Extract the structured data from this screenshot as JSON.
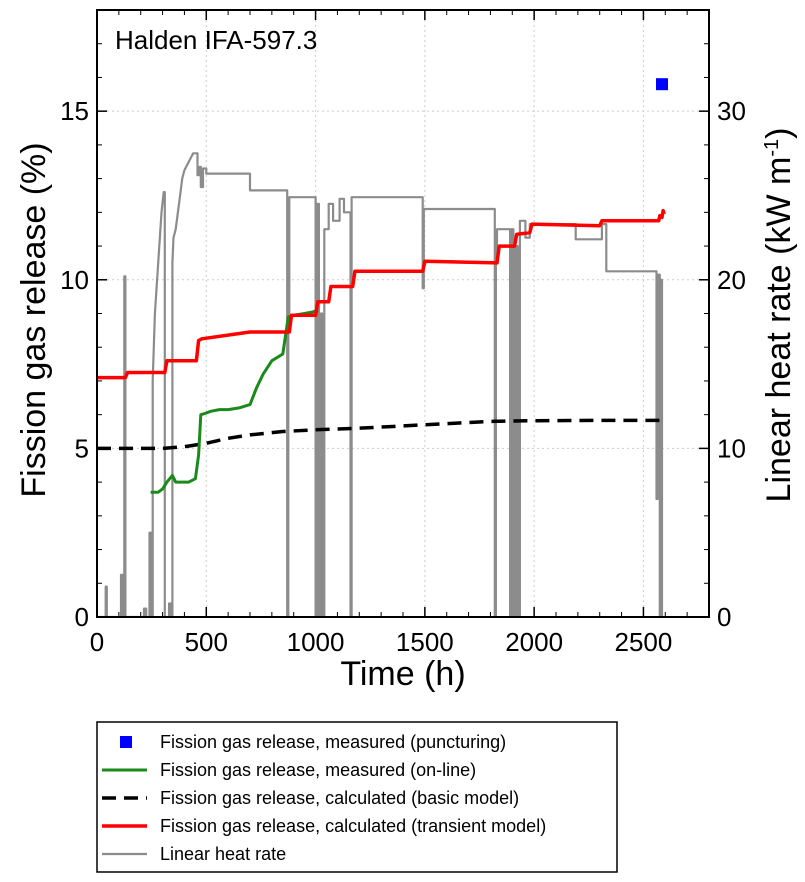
{
  "chart_data": {
    "type": "line",
    "annotation": "Halden IFA-597.3",
    "xlabel": "Time (h)",
    "ylabel": "Fission gas release (%)",
    "ylabel_right": "Linear heat rate (kW m",
    "ylabel_right_sup": "-1",
    "ylabel_right_close": ")",
    "xlim": [
      0,
      2800
    ],
    "ylim": [
      0,
      18
    ],
    "ylim_right": [
      0,
      36
    ],
    "x_ticks": [
      0,
      500,
      1000,
      1500,
      2000,
      2500
    ],
    "x_tick_labels": [
      "0",
      "500",
      "1000",
      "1500",
      "2000",
      "2500"
    ],
    "y_ticks": [
      0,
      5,
      10,
      15
    ],
    "y_tick_labels": [
      "0",
      "5",
      "10",
      "15"
    ],
    "y_right_ticks": [
      0,
      10,
      20,
      30
    ],
    "y_right_tick_labels": [
      "0",
      "10",
      "20",
      "30"
    ],
    "grid": true,
    "legend_position": "below",
    "colors": {
      "measured_puncturing": "#0000ff",
      "measured_online": "#1a8a1a",
      "basic_model": "#000000",
      "transient_model": "#ff0000",
      "linear_heat_rate": "#8c8c8c"
    },
    "series": [
      {
        "name": "Fission gas release, measured (puncturing)",
        "style": "marker",
        "axis": "left",
        "points": [
          [
            2585,
            15.8
          ]
        ]
      },
      {
        "name": "Fission gas release, measured (on-line)",
        "style": "line",
        "axis": "left",
        "points": [
          [
            245,
            3.7
          ],
          [
            280,
            3.7
          ],
          [
            300,
            3.8
          ],
          [
            320,
            4.0
          ],
          [
            345,
            4.2
          ],
          [
            360,
            4.0
          ],
          [
            420,
            4.0
          ],
          [
            450,
            4.1
          ],
          [
            465,
            4.8
          ],
          [
            475,
            6.0
          ],
          [
            500,
            6.05
          ],
          [
            520,
            6.1
          ],
          [
            560,
            6.15
          ],
          [
            600,
            6.15
          ],
          [
            650,
            6.2
          ],
          [
            700,
            6.3
          ],
          [
            730,
            6.8
          ],
          [
            760,
            7.2
          ],
          [
            800,
            7.6
          ],
          [
            850,
            7.8
          ],
          [
            875,
            8.9
          ],
          [
            900,
            8.95
          ],
          [
            950,
            9.0
          ],
          [
            990,
            9.05
          ],
          [
            1010,
            9.1
          ]
        ]
      },
      {
        "name": "Fission gas release, calculated (basic model)",
        "style": "dash",
        "axis": "left",
        "points": [
          [
            0,
            5.0
          ],
          [
            300,
            5.0
          ],
          [
            400,
            5.05
          ],
          [
            500,
            5.15
          ],
          [
            600,
            5.3
          ],
          [
            700,
            5.4
          ],
          [
            850,
            5.5
          ],
          [
            1000,
            5.55
          ],
          [
            1200,
            5.6
          ],
          [
            1500,
            5.7
          ],
          [
            1800,
            5.8
          ],
          [
            2000,
            5.82
          ],
          [
            2300,
            5.83
          ],
          [
            2600,
            5.83
          ]
        ]
      },
      {
        "name": "Fission gas release, calculated (transient model)",
        "style": "line",
        "axis": "left",
        "points": [
          [
            0,
            7.1
          ],
          [
            130,
            7.1
          ],
          [
            140,
            7.25
          ],
          [
            310,
            7.25
          ],
          [
            320,
            7.6
          ],
          [
            455,
            7.6
          ],
          [
            465,
            8.2
          ],
          [
            480,
            8.25
          ],
          [
            700,
            8.45
          ],
          [
            880,
            8.45
          ],
          [
            890,
            8.95
          ],
          [
            1000,
            8.95
          ],
          [
            1010,
            9.35
          ],
          [
            1060,
            9.35
          ],
          [
            1070,
            9.8
          ],
          [
            1170,
            9.8
          ],
          [
            1180,
            10.25
          ],
          [
            1490,
            10.25
          ],
          [
            1500,
            10.55
          ],
          [
            1830,
            10.5
          ],
          [
            1840,
            11.0
          ],
          [
            1910,
            11.0
          ],
          [
            1920,
            11.35
          ],
          [
            1980,
            11.4
          ],
          [
            1990,
            11.65
          ],
          [
            2300,
            11.6
          ],
          [
            2310,
            11.75
          ],
          [
            2570,
            11.75
          ],
          [
            2575,
            11.9
          ],
          [
            2585,
            11.85
          ],
          [
            2590,
            12.05
          ],
          [
            2595,
            11.95
          ]
        ]
      },
      {
        "name": "Linear heat rate",
        "style": "line",
        "axis": "right",
        "points": [
          [
            0,
            0
          ],
          [
            40,
            0
          ],
          [
            40,
            1.8
          ],
          [
            45,
            1.8
          ],
          [
            45,
            0
          ],
          [
            110,
            0
          ],
          [
            110,
            2.5
          ],
          [
            120,
            2.5
          ],
          [
            120,
            0
          ],
          [
            125,
            0
          ],
          [
            125,
            20.2
          ],
          [
            130,
            20.2
          ],
          [
            130,
            0
          ],
          [
            215,
            0
          ],
          [
            215,
            0.5
          ],
          [
            225,
            0.5
          ],
          [
            225,
            0
          ],
          [
            240,
            0
          ],
          [
            240,
            5.0
          ],
          [
            250,
            5.0
          ],
          [
            250,
            0
          ],
          [
            255,
            0
          ],
          [
            255,
            14.0
          ],
          [
            265,
            18.0
          ],
          [
            280,
            21.0
          ],
          [
            295,
            24.0
          ],
          [
            305,
            25.2
          ],
          [
            310,
            25.2
          ],
          [
            310,
            0
          ],
          [
            330,
            0
          ],
          [
            330,
            0.8
          ],
          [
            340,
            0.8
          ],
          [
            340,
            0
          ],
          [
            345,
            0
          ],
          [
            345,
            21.0
          ],
          [
            350,
            22.5
          ],
          [
            360,
            23.0
          ],
          [
            370,
            24.0
          ],
          [
            380,
            25.0
          ],
          [
            390,
            26.0
          ],
          [
            400,
            26.5
          ],
          [
            420,
            27.0
          ],
          [
            440,
            27.5
          ],
          [
            460,
            27.5
          ],
          [
            460,
            26.2
          ],
          [
            470,
            26.2
          ],
          [
            470,
            26.7
          ],
          [
            475,
            26.7
          ],
          [
            475,
            25.5
          ],
          [
            485,
            25.5
          ],
          [
            485,
            26.6
          ],
          [
            500,
            26.6
          ],
          [
            500,
            26.3
          ],
          [
            700,
            26.3
          ],
          [
            700,
            25.3
          ],
          [
            870,
            25.3
          ],
          [
            870,
            0
          ],
          [
            875,
            0
          ],
          [
            875,
            18.0
          ],
          [
            880,
            18.0
          ],
          [
            880,
            24.9
          ],
          [
            1000,
            24.9
          ],
          [
            1000,
            0
          ],
          [
            1005,
            0
          ],
          [
            1005,
            24.5
          ],
          [
            1015,
            24.5
          ],
          [
            1015,
            0
          ],
          [
            1025,
            0
          ],
          [
            1025,
            18.0
          ],
          [
            1030,
            18.0
          ],
          [
            1030,
            0
          ],
          [
            1040,
            0
          ],
          [
            1040,
            23.0
          ],
          [
            1060,
            23.0
          ],
          [
            1060,
            24.5
          ],
          [
            1080,
            24.5
          ],
          [
            1080,
            23.5
          ],
          [
            1110,
            23.5
          ],
          [
            1110,
            24.8
          ],
          [
            1130,
            24.8
          ],
          [
            1130,
            24.0
          ],
          [
            1160,
            24.0
          ],
          [
            1160,
            0
          ],
          [
            1165,
            0
          ],
          [
            1165,
            24.9
          ],
          [
            1490,
            24.9
          ],
          [
            1490,
            19.5
          ],
          [
            1495,
            19.5
          ],
          [
            1495,
            24.2
          ],
          [
            1820,
            24.2
          ],
          [
            1820,
            0
          ],
          [
            1825,
            0
          ],
          [
            1825,
            21.0
          ],
          [
            1830,
            21.0
          ],
          [
            1830,
            23.0
          ],
          [
            1890,
            23.0
          ],
          [
            1890,
            0
          ],
          [
            1895,
            0
          ],
          [
            1895,
            23.0
          ],
          [
            1905,
            23.0
          ],
          [
            1905,
            0
          ],
          [
            1915,
            0
          ],
          [
            1915,
            22.0
          ],
          [
            1925,
            22.0
          ],
          [
            1925,
            0
          ],
          [
            1935,
            0
          ],
          [
            1935,
            23.5
          ],
          [
            1960,
            23.5
          ],
          [
            1960,
            22.5
          ],
          [
            1980,
            22.5
          ],
          [
            1980,
            23.3
          ],
          [
            2190,
            23.3
          ],
          [
            2190,
            22.4
          ],
          [
            2310,
            22.4
          ],
          [
            2310,
            23.3
          ],
          [
            2330,
            23.3
          ],
          [
            2330,
            20.5
          ],
          [
            2560,
            20.5
          ],
          [
            2560,
            7.0
          ],
          [
            2565,
            7.0
          ],
          [
            2565,
            20.3
          ],
          [
            2575,
            20.3
          ],
          [
            2575,
            0
          ],
          [
            2580,
            0
          ],
          [
            2580,
            20.0
          ],
          [
            2585,
            20.0
          ],
          [
            2585,
            0
          ],
          [
            2600,
            0
          ]
        ]
      }
    ]
  }
}
